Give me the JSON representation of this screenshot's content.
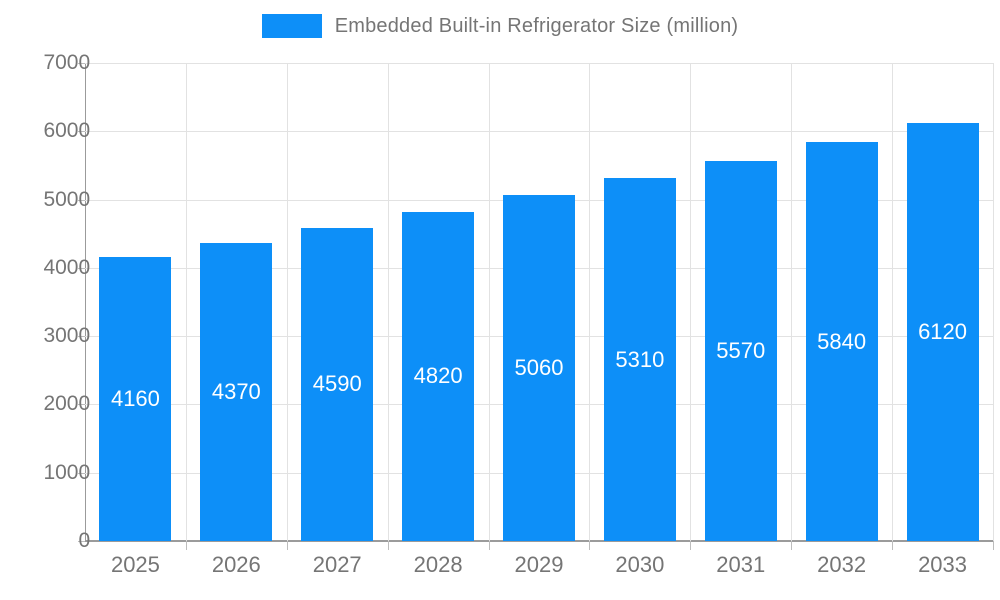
{
  "legend": {
    "label": "Embedded Built-in Refrigerator Size (million)"
  },
  "chart_data": {
    "type": "bar",
    "title": "Embedded Built-in Refrigerator Size (million)",
    "categories": [
      "2025",
      "2026",
      "2027",
      "2028",
      "2029",
      "2030",
      "2031",
      "2032",
      "2033"
    ],
    "values": [
      4160,
      4370,
      4590,
      4820,
      5060,
      5310,
      5570,
      5840,
      6120
    ],
    "xlabel": "",
    "ylabel": "",
    "ylim": [
      0,
      7000
    ],
    "ytick_step": 1000,
    "yticks": [
      0,
      1000,
      2000,
      3000,
      4000,
      5000,
      6000,
      7000
    ],
    "grid": true,
    "legend_position": "top",
    "bar_value_labels_inside": true,
    "colors": {
      "bar": "#0d8ff8",
      "bar_label_text": "#ffffff",
      "grid_line": "#e2e2e2",
      "axis_line": "#9b9b9b",
      "tick_text": "#757575",
      "legend_text": "#757575",
      "background": "#ffffff"
    }
  }
}
